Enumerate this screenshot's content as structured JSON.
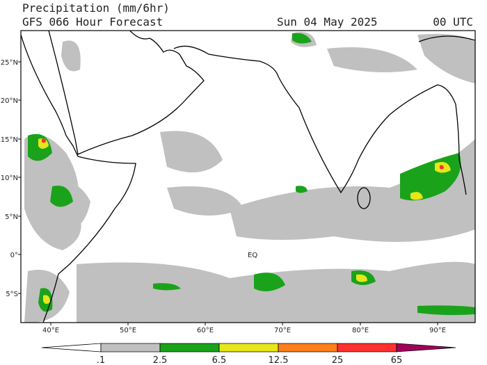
{
  "header": {
    "title": "Precipitation (mm/6hr)",
    "subtitle": "GFS 066 Hour Forecast",
    "date": "Sun 04 May 2025",
    "time": "00 UTC"
  },
  "map": {
    "lat_labels": [
      "25°N",
      "20°N",
      "15°N",
      "10°N",
      "5°N",
      "0°",
      "5°S"
    ],
    "lon_labels": [
      "40°E",
      "50°E",
      "60°E",
      "70°E",
      "80°E",
      "90°E"
    ],
    "equator_label": "EQ"
  },
  "legend": {
    "labels": [
      ".1",
      "2.5",
      "6.5",
      "12.5",
      "25",
      "65"
    ],
    "colors": [
      "#ffffff",
      "#c0c0c0",
      "#1aa31a",
      "#e6e61a",
      "#ff7f1a",
      "#ff3030",
      "#a0005a"
    ]
  }
}
